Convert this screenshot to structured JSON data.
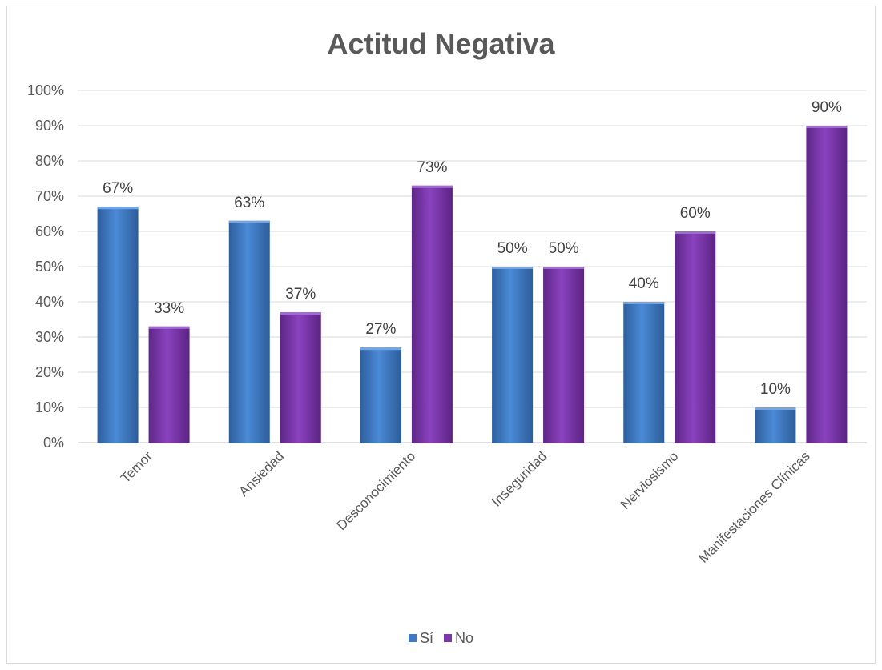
{
  "chart_data": {
    "type": "bar",
    "title": "Actitud Negativa",
    "categories": [
      "Temor",
      "Ansiedad",
      "Desconocimiento",
      "Inseguridad",
      "Nerviosismo",
      "Manifestaciones Clínicas"
    ],
    "series": [
      {
        "name": "Sí",
        "values": [
          67,
          63,
          27,
          50,
          40,
          10
        ],
        "color": "#3f79c5"
      },
      {
        "name": "No",
        "values": [
          33,
          37,
          73,
          50,
          60,
          90
        ],
        "color": "#7b37ab"
      }
    ],
    "data_labels": {
      "Sí": [
        "67%",
        "63%",
        "27%",
        "50%",
        "40%",
        "10%"
      ],
      "No": [
        "33%",
        "37%",
        "73%",
        "50%",
        "60%",
        "90%"
      ]
    },
    "ylim": [
      0,
      100
    ],
    "yticks": [
      "0%",
      "10%",
      "20%",
      "30%",
      "40%",
      "50%",
      "60%",
      "70%",
      "80%",
      "90%",
      "100%"
    ],
    "grid": true,
    "legend_position": "bottom"
  }
}
